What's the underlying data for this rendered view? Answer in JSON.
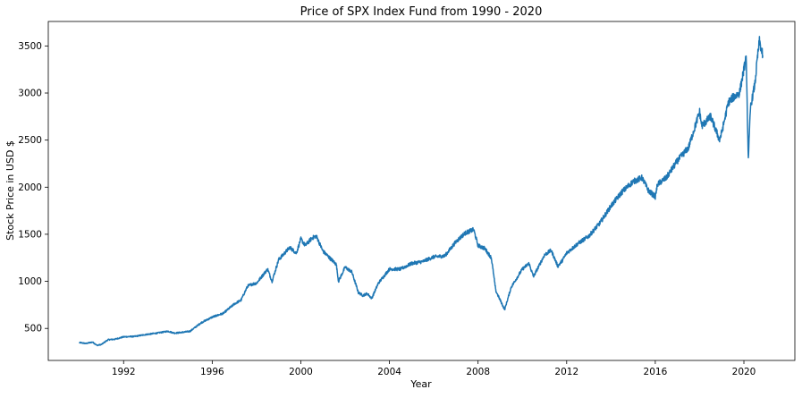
{
  "chart_data": {
    "type": "line",
    "title": "Price of SPX Index Fund from 1990 - 2020",
    "xlabel": "Year",
    "ylabel": "Stock Price in USD $",
    "xlim": [
      1988.6,
      2022.3
    ],
    "ylim": [
      160,
      3760
    ],
    "xticks": [
      1992,
      1996,
      2000,
      2004,
      2008,
      2012,
      2016,
      2020
    ],
    "xtick_labels": [
      "1992",
      "1996",
      "2000",
      "2004",
      "2008",
      "2012",
      "2016",
      "2020"
    ],
    "yticks": [
      500,
      1000,
      1500,
      2000,
      2500,
      3000,
      3500
    ],
    "ytick_labels": [
      "500",
      "1000",
      "1500",
      "2000",
      "2500",
      "3000",
      "3500"
    ],
    "grid": false,
    "legend": "none",
    "series": [
      {
        "color": "#1f77b4",
        "x": [
          1990.0,
          1990.3,
          1990.6,
          1990.8,
          1991.0,
          1991.3,
          1991.6,
          1992.0,
          1992.5,
          1993.0,
          1993.5,
          1994.0,
          1994.3,
          1994.7,
          1995.0,
          1995.5,
          1996.0,
          1996.5,
          1997.0,
          1997.3,
          1997.6,
          1997.8,
          1998.0,
          1998.5,
          1998.7,
          1999.0,
          1999.5,
          1999.8,
          2000.0,
          2000.2,
          2000.5,
          2000.7,
          2001.0,
          2001.3,
          2001.6,
          2001.7,
          2002.0,
          2002.3,
          2002.6,
          2002.8,
          2003.0,
          2003.2,
          2003.5,
          2004.0,
          2004.5,
          2005.0,
          2005.5,
          2006.0,
          2006.5,
          2007.0,
          2007.4,
          2007.8,
          2008.0,
          2008.3,
          2008.6,
          2008.8,
          2009.0,
          2009.2,
          2009.5,
          2010.0,
          2010.3,
          2010.5,
          2011.0,
          2011.3,
          2011.6,
          2011.8,
          2012.0,
          2012.5,
          2013.0,
          2013.5,
          2014.0,
          2014.5,
          2015.0,
          2015.4,
          2015.7,
          2016.0,
          2016.1,
          2016.5,
          2017.0,
          2017.5,
          2018.0,
          2018.1,
          2018.5,
          2018.9,
          2019.0,
          2019.3,
          2019.5,
          2019.8,
          2020.0,
          2020.1,
          2020.2,
          2020.3,
          2020.5,
          2020.6,
          2020.7,
          2020.85
        ],
        "y": [
          350,
          340,
          355,
          320,
          330,
          380,
          385,
          410,
          415,
          435,
          450,
          470,
          450,
          460,
          470,
          560,
          620,
          660,
          760,
          800,
          950,
          970,
          980,
          1130,
          1000,
          1230,
          1360,
          1300,
          1450,
          1380,
          1460,
          1480,
          1320,
          1250,
          1180,
          1000,
          1150,
          1100,
          880,
          850,
          870,
          820,
          980,
          1130,
          1130,
          1190,
          1210,
          1260,
          1270,
          1420,
          1510,
          1550,
          1380,
          1350,
          1250,
          900,
          800,
          700,
          940,
          1130,
          1190,
          1050,
          1280,
          1330,
          1160,
          1220,
          1300,
          1400,
          1480,
          1620,
          1800,
          1950,
          2060,
          2100,
          1960,
          1900,
          2030,
          2100,
          2280,
          2420,
          2800,
          2650,
          2750,
          2500,
          2580,
          2900,
          2950,
          3000,
          3250,
          3380,
          2300,
          2850,
          3100,
          3350,
          3550,
          3400
        ]
      }
    ]
  }
}
